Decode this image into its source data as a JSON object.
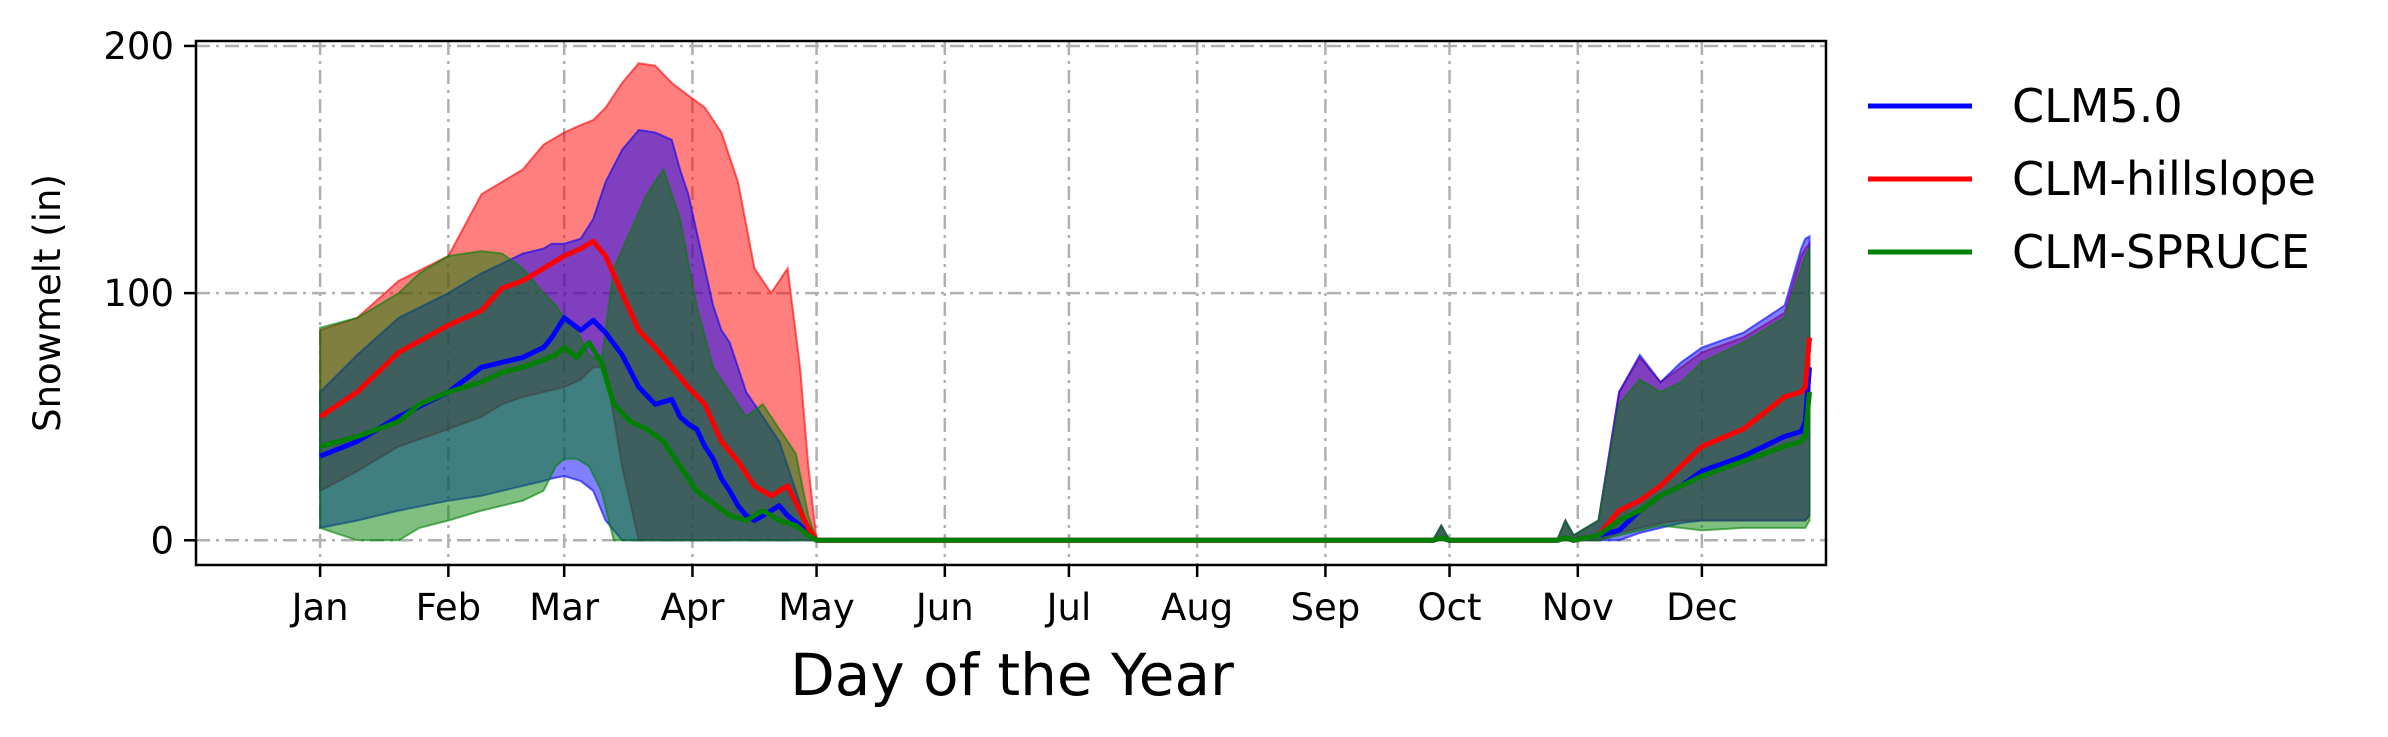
{
  "chart_data": {
    "type": "area",
    "xlabel": "Day of the Year",
    "ylabel": "Snowmelt (in)",
    "xlim": [
      -29,
      365
    ],
    "ylim": [
      -10,
      202
    ],
    "x_ticks": [
      {
        "label": "Jan",
        "value": 1
      },
      {
        "label": "Feb",
        "value": 32
      },
      {
        "label": "Mar",
        "value": 60
      },
      {
        "label": "Apr",
        "value": 91
      },
      {
        "label": "May",
        "value": 121
      },
      {
        "label": "Jun",
        "value": 152
      },
      {
        "label": "Jul",
        "value": 182
      },
      {
        "label": "Aug",
        "value": 213
      },
      {
        "label": "Sep",
        "value": 244
      },
      {
        "label": "Oct",
        "value": 274
      },
      {
        "label": "Nov",
        "value": 305
      },
      {
        "label": "Dec",
        "value": 335
      }
    ],
    "y_ticks": [
      {
        "label": "0",
        "value": 0
      },
      {
        "label": "100",
        "value": 100
      },
      {
        "label": "200",
        "value": 200
      }
    ],
    "grid": true,
    "legend_position": "outside-right",
    "series": [
      {
        "name": "CLM5.0",
        "color": "#0000ff",
        "x": [
          1,
          10,
          20,
          32,
          40,
          45,
          50,
          55,
          57,
          60,
          64,
          67,
          70,
          74,
          78,
          82,
          86,
          88,
          90,
          92,
          94,
          96,
          98,
          100,
          102,
          104,
          106,
          108,
          110,
          112,
          114,
          117,
          119,
          121,
          130,
          270,
          272,
          274,
          300,
          302,
          304,
          310,
          315,
          320,
          325,
          330,
          335,
          345,
          355,
          359,
          360,
          361
        ],
        "mean": [
          34,
          40,
          50,
          60,
          70,
          72,
          74,
          78,
          82,
          90,
          85,
          89,
          84,
          75,
          62,
          55,
          57,
          50,
          47,
          45,
          38,
          33,
          25,
          20,
          14,
          10,
          8,
          10,
          12,
          14,
          10,
          6,
          3,
          0,
          0,
          0,
          1,
          0,
          0,
          1,
          0,
          2,
          4,
          12,
          18,
          22,
          28,
          34,
          42,
          44,
          48,
          70
        ],
        "lower": [
          5,
          8,
          12,
          16,
          18,
          20,
          22,
          24,
          25,
          26,
          24,
          20,
          8,
          0,
          0,
          0,
          0,
          0,
          0,
          0,
          0,
          0,
          0,
          0,
          0,
          0,
          0,
          0,
          0,
          0,
          0,
          0,
          0,
          0,
          0,
          0,
          0,
          0,
          0,
          0,
          0,
          0,
          0,
          3,
          5,
          7,
          8,
          8,
          8,
          8,
          8,
          10
        ],
        "upper": [
          60,
          75,
          90,
          100,
          108,
          112,
          116,
          118,
          120,
          120,
          122,
          130,
          145,
          158,
          166,
          165,
          162,
          150,
          140,
          125,
          110,
          95,
          85,
          80,
          70,
          60,
          55,
          50,
          45,
          40,
          30,
          15,
          5,
          0,
          0,
          0,
          6,
          0,
          0,
          8,
          2,
          8,
          60,
          75,
          64,
          72,
          78,
          84,
          95,
          118,
          122,
          123
        ]
      },
      {
        "name": "CLM-hillslope",
        "color": "#ff0000",
        "x": [
          1,
          10,
          20,
          32,
          40,
          45,
          50,
          55,
          60,
          64,
          67,
          70,
          74,
          78,
          82,
          86,
          90,
          94,
          98,
          102,
          106,
          110,
          114,
          117,
          119,
          121,
          130,
          270,
          272,
          274,
          300,
          302,
          304,
          310,
          315,
          320,
          325,
          330,
          335,
          345,
          355,
          359,
          360,
          361
        ],
        "mean": [
          50,
          60,
          76,
          87,
          93,
          102,
          105,
          110,
          115,
          118,
          121,
          115,
          100,
          85,
          78,
          70,
          62,
          55,
          40,
          32,
          22,
          18,
          22,
          12,
          5,
          0,
          0,
          0,
          1,
          0,
          0,
          1,
          0,
          2,
          12,
          16,
          22,
          30,
          38,
          45,
          58,
          60,
          62,
          82
        ],
        "lower": [
          20,
          28,
          38,
          45,
          50,
          55,
          58,
          60,
          62,
          65,
          70,
          70,
          30,
          0,
          0,
          0,
          0,
          0,
          0,
          0,
          0,
          0,
          0,
          0,
          0,
          0,
          0,
          0,
          0,
          0,
          0,
          0,
          0,
          0,
          3,
          5,
          7,
          8,
          8,
          8,
          8,
          8,
          8,
          10
        ],
        "upper": [
          85,
          90,
          105,
          115,
          140,
          145,
          150,
          160,
          165,
          168,
          170,
          175,
          185,
          193,
          192,
          185,
          180,
          175,
          165,
          145,
          110,
          100,
          110,
          70,
          30,
          0,
          0,
          0,
          6,
          0,
          0,
          8,
          2,
          8,
          60,
          74,
          64,
          70,
          76,
          82,
          92,
          115,
          118,
          120
        ]
      },
      {
        "name": "CLM-SPRUCE",
        "color": "#008000",
        "x": [
          1,
          10,
          20,
          25,
          32,
          40,
          45,
          50,
          55,
          58,
          60,
          63,
          66,
          69,
          72,
          76,
          80,
          84,
          88,
          92,
          96,
          100,
          104,
          108,
          112,
          116,
          119,
          121,
          130,
          270,
          272,
          274,
          300,
          302,
          304,
          310,
          315,
          320,
          325,
          330,
          335,
          345,
          355,
          359,
          360,
          361
        ],
        "mean": [
          38,
          42,
          48,
          55,
          60,
          64,
          68,
          70,
          73,
          75,
          78,
          74,
          80,
          72,
          55,
          48,
          45,
          40,
          30,
          20,
          15,
          10,
          8,
          12,
          8,
          6,
          2,
          0,
          0,
          0,
          1,
          0,
          0,
          1,
          0,
          2,
          8,
          12,
          18,
          22,
          26,
          32,
          38,
          40,
          42,
          60
        ],
        "lower": [
          5,
          0,
          0,
          5,
          8,
          12,
          14,
          16,
          20,
          30,
          33,
          33,
          30,
          20,
          0,
          0,
          0,
          0,
          0,
          0,
          0,
          0,
          0,
          0,
          0,
          0,
          0,
          0,
          0,
          0,
          0,
          0,
          0,
          0,
          0,
          0,
          2,
          4,
          6,
          5,
          4,
          5,
          5,
          5,
          5,
          8
        ],
        "upper": [
          86,
          90,
          100,
          108,
          115,
          117,
          116,
          110,
          100,
          95,
          90,
          85,
          75,
          72,
          110,
          125,
          140,
          150,
          130,
          95,
          70,
          60,
          50,
          55,
          45,
          35,
          10,
          0,
          0,
          0,
          6,
          0,
          0,
          8,
          2,
          8,
          55,
          65,
          60,
          64,
          72,
          80,
          90,
          110,
          115,
          118
        ]
      }
    ]
  }
}
